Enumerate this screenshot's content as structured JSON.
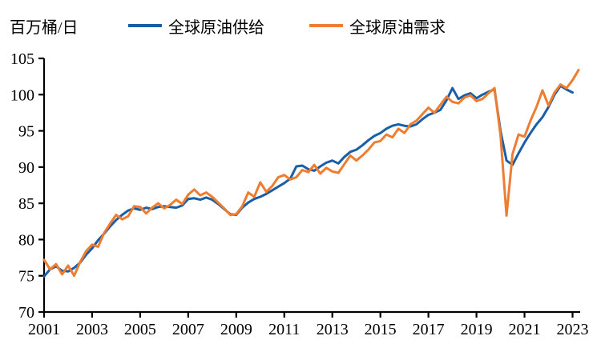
{
  "header": {
    "unit_label": "百万桶/日"
  },
  "legend": {
    "items": [
      {
        "label": "全球原油供给",
        "color": "#1B5EA8"
      },
      {
        "label": "全球原油需求",
        "color": "#EE7D31"
      }
    ]
  },
  "chart_data": {
    "type": "line",
    "title": "",
    "xlabel": "",
    "ylabel": "百万桶/日",
    "ylim": [
      70,
      105
    ],
    "ytick_step": 5,
    "grid": false,
    "legend_position": "top",
    "x_tick_labels": [
      "2001",
      "2003",
      "2005",
      "2007",
      "2009",
      "2011",
      "2013",
      "2015",
      "2017",
      "2019",
      "2021",
      "2023"
    ],
    "x_tick_every": 8,
    "categories": [
      "2001Q1",
      "2001Q2",
      "2001Q3",
      "2001Q4",
      "2002Q1",
      "2002Q2",
      "2002Q3",
      "2002Q4",
      "2003Q1",
      "2003Q2",
      "2003Q3",
      "2003Q4",
      "2004Q1",
      "2004Q2",
      "2004Q3",
      "2004Q4",
      "2005Q1",
      "2005Q2",
      "2005Q3",
      "2005Q4",
      "2006Q1",
      "2006Q2",
      "2006Q3",
      "2006Q4",
      "2007Q1",
      "2007Q2",
      "2007Q3",
      "2007Q4",
      "2008Q1",
      "2008Q2",
      "2008Q3",
      "2008Q4",
      "2009Q1",
      "2009Q2",
      "2009Q3",
      "2009Q4",
      "2010Q1",
      "2010Q2",
      "2010Q3",
      "2010Q4",
      "2011Q1",
      "2011Q2",
      "2011Q3",
      "2011Q4",
      "2012Q1",
      "2012Q2",
      "2012Q3",
      "2012Q4",
      "2013Q1",
      "2013Q2",
      "2013Q3",
      "2013Q4",
      "2014Q1",
      "2014Q2",
      "2014Q3",
      "2014Q4",
      "2015Q1",
      "2015Q2",
      "2015Q3",
      "2015Q4",
      "2016Q1",
      "2016Q2",
      "2016Q3",
      "2016Q4",
      "2017Q1",
      "2017Q2",
      "2017Q3",
      "2017Q4",
      "2018Q1",
      "2018Q2",
      "2018Q3",
      "2018Q4",
      "2019Q1",
      "2019Q2",
      "2019Q3",
      "2019Q4",
      "2020Q1",
      "2020Q2",
      "2020Q3",
      "2020Q4",
      "2021Q1",
      "2021Q2",
      "2021Q3",
      "2021Q4",
      "2022Q1",
      "2022Q2",
      "2022Q3",
      "2022Q4",
      "2023Q1",
      "2023Q2"
    ],
    "series": [
      {
        "name": "全球原油供给",
        "color": "#1B5EA8",
        "values": [
          74.9,
          75.9,
          76.3,
          75.7,
          75.6,
          76.1,
          76.8,
          77.9,
          78.8,
          79.9,
          80.8,
          81.8,
          82.7,
          83.4,
          84.0,
          84.3,
          84.1,
          84.4,
          84.2,
          84.5,
          84.6,
          84.5,
          84.4,
          84.7,
          85.6,
          85.7,
          85.5,
          85.8,
          85.5,
          84.9,
          84.2,
          83.5,
          83.4,
          84.4,
          85.1,
          85.6,
          85.9,
          86.3,
          86.8,
          87.3,
          87.8,
          88.4,
          90.1,
          90.2,
          89.7,
          89.5,
          90.1,
          90.6,
          90.9,
          90.5,
          91.4,
          92.1,
          92.4,
          93.0,
          93.7,
          94.3,
          94.7,
          95.3,
          95.7,
          95.9,
          95.7,
          95.6,
          95.9,
          96.6,
          97.2,
          97.5,
          97.9,
          99.2,
          100.9,
          99.4,
          99.9,
          100.2,
          99.5,
          100.0,
          100.4,
          100.7,
          95.0,
          90.9,
          90.3,
          91.9,
          93.4,
          94.7,
          95.9,
          96.9,
          98.3,
          100.0,
          101.2,
          100.7,
          100.3,
          null
        ]
      },
      {
        "name": "全球原油需求",
        "color": "#EE7D31",
        "values": [
          77.2,
          75.9,
          76.6,
          75.2,
          76.4,
          75.0,
          76.9,
          78.4,
          79.3,
          79.0,
          80.9,
          82.2,
          83.4,
          82.8,
          83.2,
          84.6,
          84.5,
          83.6,
          84.4,
          85.0,
          84.3,
          84.8,
          85.5,
          84.9,
          86.2,
          86.9,
          86.1,
          86.5,
          85.9,
          85.1,
          84.3,
          83.4,
          83.5,
          84.6,
          86.5,
          85.9,
          87.9,
          86.6,
          87.4,
          88.6,
          88.9,
          88.3,
          88.6,
          89.6,
          89.3,
          90.3,
          89.1,
          89.9,
          89.4,
          89.2,
          90.4,
          91.6,
          90.9,
          91.6,
          92.4,
          93.4,
          93.6,
          94.5,
          94.1,
          95.3,
          94.7,
          95.9,
          96.4,
          97.3,
          98.2,
          97.5,
          98.6,
          99.7,
          99.0,
          98.8,
          99.6,
          99.9,
          99.1,
          99.4,
          100.2,
          100.9,
          94.4,
          83.3,
          91.8,
          94.5,
          94.2,
          96.4,
          98.3,
          100.6,
          98.5,
          100.3,
          101.4,
          100.9,
          102.0,
          103.4
        ]
      }
    ]
  }
}
